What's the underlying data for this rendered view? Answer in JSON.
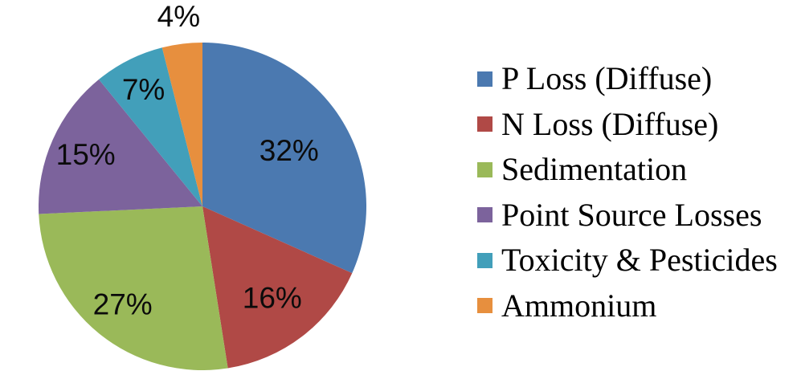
{
  "chart_data": {
    "type": "pie",
    "direction": "clockwise",
    "start_angle_deg": 0,
    "legend_position": "right",
    "background_color": "#ffffff",
    "label_color": "#0b0b0b",
    "slices": [
      {
        "label": "P Loss (Diffuse)",
        "value": 32,
        "display": "32%",
        "color": "#4B79B0"
      },
      {
        "label": "N Loss (Diffuse)",
        "value": 16,
        "display": "16%",
        "color": "#B04946"
      },
      {
        "label": "Sedimentation",
        "value": 27,
        "display": "27%",
        "color": "#9AB959"
      },
      {
        "label": "Point Source Losses",
        "value": 15,
        "display": "15%",
        "color": "#7C639C"
      },
      {
        "label": "Toxicity & Pesticides",
        "value": 7,
        "display": "7%",
        "color": "#429FBA"
      },
      {
        "label": "Ammonium",
        "value": 4,
        "display": "4%",
        "color": "#E78F3E"
      }
    ]
  }
}
